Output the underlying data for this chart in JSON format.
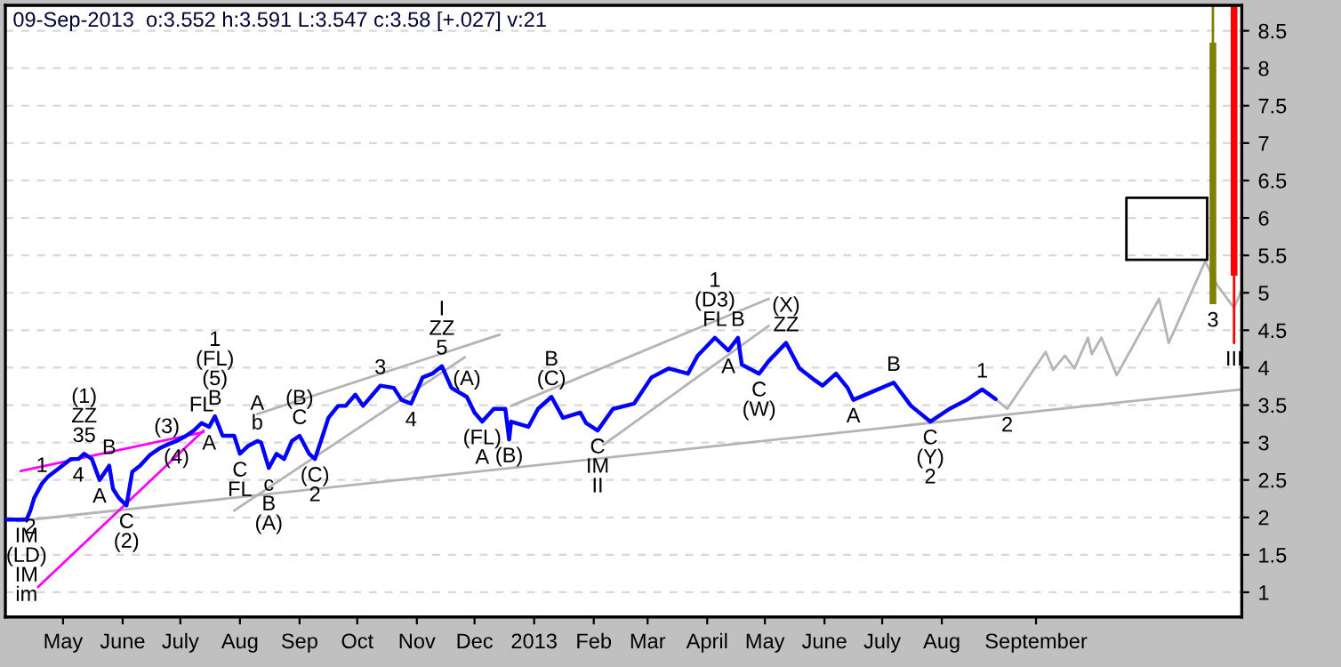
{
  "chart_data": {
    "type": "line",
    "title": "09-Sep-2013  o:3.552 h:3.591 L:3.547 c:3.58 [+.027] v:21",
    "xlim": [
      "2012-04-12",
      "2014-01-15"
    ],
    "ylim": [
      0.67,
      8.84
    ],
    "yticks": [
      1,
      1.5,
      2,
      2.5,
      3,
      3.5,
      4,
      4.5,
      5,
      5.5,
      6,
      6.5,
      7,
      7.5,
      8,
      8.5
    ],
    "xticks": [
      {
        "value": "2012-05-12",
        "label": "May"
      },
      {
        "value": "2012-06-12",
        "label": "June"
      },
      {
        "value": "2012-07-12",
        "label": "July"
      },
      {
        "value": "2012-08-12",
        "label": "Aug"
      },
      {
        "value": "2012-09-12",
        "label": "Sep"
      },
      {
        "value": "2012-10-12",
        "label": "Oct"
      },
      {
        "value": "2012-11-12",
        "label": "Nov"
      },
      {
        "value": "2012-12-12",
        "label": "Dec"
      },
      {
        "value": "2013-01-12",
        "label": "2013"
      },
      {
        "value": "2013-02-12",
        "label": "Feb"
      },
      {
        "value": "2013-03-12",
        "label": "Mar"
      },
      {
        "value": "2013-04-12",
        "label": "April"
      },
      {
        "value": "2013-05-12",
        "label": "May"
      },
      {
        "value": "2013-06-12",
        "label": "June"
      },
      {
        "value": "2013-07-12",
        "label": "July"
      },
      {
        "value": "2013-08-12",
        "label": "Aug"
      },
      {
        "value": "2013-09-30",
        "label": "September"
      }
    ],
    "grid": "y",
    "series": [
      {
        "color": "#b4b4b4",
        "x": [
          "2012-04-18",
          "2014-01-15"
        ],
        "values": [
          1.95,
          3.71
        ]
      },
      {
        "color": "#b4b4b4",
        "x": [
          "2012-08-09",
          "2012-12-07"
        ],
        "values": [
          2.09,
          4.14
        ]
      },
      {
        "color": "#b4b4b4",
        "x": [
          "2012-08-21",
          "2012-12-25"
        ],
        "values": [
          3.38,
          4.44
        ]
      },
      {
        "color": "#b4b4b4",
        "x": [
          "2012-12-31",
          "2013-05-14"
        ],
        "values": [
          3.49,
          4.92
        ]
      },
      {
        "color": "#b4b4b4",
        "x": [
          "2013-02-17",
          "2013-05-14"
        ],
        "values": [
          2.97,
          4.56
        ]
      },
      {
        "color": "#ff00ff",
        "x": [
          "2012-04-20",
          "2012-07-24"
        ],
        "values": [
          2.62,
          3.14
        ]
      },
      {
        "color": "#ff00ff",
        "x": [
          "2012-04-29",
          "2012-07-24"
        ],
        "values": [
          1.07,
          3.16
        ]
      },
      {
        "color": "#b4b4b4",
        "x": [
          "2013-09-09",
          "2013-09-15",
          "2013-10-05",
          "2013-10-09",
          "2013-10-15",
          "2013-10-20",
          "2013-10-27",
          "2013-10-29",
          "2013-11-03",
          "2013-11-11",
          "2013-12-03",
          "2013-12-08",
          "2013-12-27",
          "2014-01-02",
          "2014-01-11",
          "2014-01-15"
        ],
        "values": [
          3.58,
          3.45,
          4.21,
          3.97,
          4.16,
          3.99,
          4.4,
          4.18,
          4.4,
          3.9,
          4.92,
          4.33,
          5.42,
          5.11,
          4.8,
          5.04
        ]
      },
      {
        "color": "#000000",
        "x": [
          "2013-11-16",
          "2013-11-16",
          "2013-12-28"
        ],
        "values": [
          5.44,
          6.27,
          6.27
        ]
      },
      {
        "color": "#000000",
        "x": [
          "2013-11-16",
          "2013-12-28",
          "2013-12-28"
        ],
        "values": [
          5.44,
          5.44,
          6.27
        ]
      },
      {
        "color": "#808000",
        "x": [
          "2013-12-31",
          "2013-12-31"
        ],
        "values": [
          8.84,
          8.34
        ]
      },
      {
        "type": "bar",
        "color": "#808000",
        "x": [
          "2013-12-31"
        ],
        "base": [
          4.85
        ],
        "values": [
          3.49
        ]
      },
      {
        "type": "bar",
        "color": "#ff0000",
        "x": [
          "2014-01-11"
        ],
        "base": [
          5.23
        ],
        "values": [
          3.61
        ]
      },
      {
        "color": "#ff0000",
        "x": [
          "2014-01-11",
          "2014-01-11"
        ],
        "values": [
          4.33,
          5.22
        ]
      },
      {
        "color": "#0000ff",
        "x": [
          "2012-04-12",
          "2012-04-23",
          "2012-04-25",
          "2012-04-27",
          "2012-05-01",
          "2012-05-04",
          "2012-05-09",
          "2012-05-16",
          "2012-05-20",
          "2012-05-23",
          "2012-05-27",
          "2012-05-31",
          "2012-06-05",
          "2012-06-07",
          "2012-06-10",
          "2012-06-14",
          "2012-06-17",
          "2012-06-21",
          "2012-06-26",
          "2012-07-01",
          "2012-07-05",
          "2012-07-10",
          "2012-07-15",
          "2012-07-19",
          "2012-07-23",
          "2012-07-27",
          "2012-07-30",
          "2012-08-03",
          "2012-08-09",
          "2012-08-12",
          "2012-08-16",
          "2012-08-21",
          "2012-08-23",
          "2012-08-27",
          "2012-08-31",
          "2012-09-04",
          "2012-09-08",
          "2012-09-12",
          "2012-09-17",
          "2012-09-20",
          "2012-09-24",
          "2012-09-27",
          "2012-10-02",
          "2012-10-06",
          "2012-10-11",
          "2012-10-15",
          "2012-10-20",
          "2012-10-24",
          "2012-10-31",
          "2012-11-04",
          "2012-11-09",
          "2012-11-15",
          "2012-11-20",
          "2012-11-25",
          "2012-11-30",
          "2012-12-08",
          "2012-12-12",
          "2012-12-16",
          "2012-12-22",
          "2012-12-28",
          "2012-12-30",
          "2012-12-31",
          "2013-01-09",
          "2013-01-14",
          "2013-01-21",
          "2013-01-27",
          "2013-02-05",
          "2013-02-08",
          "2013-02-14",
          "2013-02-22",
          "2013-03-05",
          "2013-03-14",
          "2013-03-23",
          "2013-04-02",
          "2013-04-07",
          "2013-04-16",
          "2013-04-23",
          "2013-04-28",
          "2013-04-30",
          "2013-05-09",
          "2013-05-14",
          "2013-05-23",
          "2013-05-30",
          "2013-06-06",
          "2013-06-11",
          "2013-06-18",
          "2013-06-24",
          "2013-06-27",
          "2013-07-07",
          "2013-07-18",
          "2013-07-27",
          "2013-08-06",
          "2013-08-16",
          "2013-08-25",
          "2013-09-02",
          "2013-09-09"
        ],
        "values": [
          1.97,
          1.97,
          2.09,
          2.26,
          2.45,
          2.54,
          2.64,
          2.78,
          2.78,
          2.85,
          2.78,
          2.5,
          2.69,
          2.38,
          2.26,
          2.16,
          2.61,
          2.69,
          2.83,
          2.92,
          2.97,
          3.02,
          3.09,
          3.16,
          3.26,
          3.21,
          3.35,
          3.09,
          3.09,
          2.85,
          2.95,
          3.02,
          3.0,
          2.66,
          2.85,
          2.78,
          3.02,
          3.09,
          2.85,
          2.78,
          3.09,
          3.33,
          3.49,
          3.49,
          3.64,
          3.49,
          3.64,
          3.76,
          3.73,
          3.57,
          3.52,
          3.87,
          3.92,
          4.02,
          3.73,
          3.61,
          3.4,
          3.28,
          3.45,
          3.45,
          3.04,
          3.28,
          3.21,
          3.45,
          3.61,
          3.33,
          3.4,
          3.26,
          3.16,
          3.45,
          3.52,
          3.87,
          3.99,
          3.92,
          4.16,
          4.4,
          4.23,
          4.4,
          4.04,
          3.92,
          4.09,
          4.33,
          3.99,
          3.85,
          3.76,
          3.92,
          3.73,
          3.57,
          3.68,
          3.8,
          3.49,
          3.28,
          3.45,
          3.57,
          3.71,
          3.58
        ]
      }
    ],
    "annotations": [
      {
        "text": "IM\n(LD)\nIM\nim",
        "x": "2012-04-23",
        "y": 1.97
      },
      {
        "text": "2",
        "x": "2012-04-25",
        "y": 2.09
      },
      {
        "text": "1",
        "x": "2012-05-01",
        "y": 2.45
      },
      {
        "text": "(1)\nZZ\n35",
        "x": "2012-05-23",
        "y": 2.85
      },
      {
        "text": "4",
        "x": "2012-05-20",
        "y": 2.78
      },
      {
        "text": "A",
        "x": "2012-05-31",
        "y": 2.5
      },
      {
        "text": "B",
        "x": "2012-06-05",
        "y": 2.69
      },
      {
        "text": "C\n(2)",
        "x": "2012-06-14",
        "y": 2.16
      },
      {
        "text": "(3)",
        "x": "2012-07-05",
        "y": 2.97
      },
      {
        "text": "(4)",
        "x": "2012-07-10",
        "y": 3.02
      },
      {
        "text": "FL",
        "x": "2012-07-23",
        "y": 3.26
      },
      {
        "text": "A",
        "x": "2012-07-27",
        "y": 3.21
      },
      {
        "text": "1\n(FL)\n(5)\nB",
        "x": "2012-07-30",
        "y": 3.35
      },
      {
        "text": "C\nFL",
        "x": "2012-08-12",
        "y": 2.85
      },
      {
        "text": "A\nb",
        "x": "2012-08-21",
        "y": 3.02
      },
      {
        "text": "c\nB\n(A)",
        "x": "2012-08-27",
        "y": 2.66
      },
      {
        "text": "(B)\nC",
        "x": "2012-09-12",
        "y": 3.09
      },
      {
        "text": "(C)\n2",
        "x": "2012-09-20",
        "y": 2.78
      },
      {
        "text": "3",
        "x": "2012-10-24",
        "y": 3.76
      },
      {
        "text": "4",
        "x": "2012-11-09",
        "y": 3.52
      },
      {
        "text": "I\nZZ\n5",
        "x": "2012-11-25",
        "y": 4.02
      },
      {
        "text": "(A)",
        "x": "2012-12-08",
        "y": 3.61
      },
      {
        "text": "(FL)\nA",
        "x": "2012-12-16",
        "y": 3.28
      },
      {
        "text": "(B)",
        "x": "2012-12-30",
        "y": 3.04
      },
      {
        "text": "B\n(C)",
        "x": "2013-01-21",
        "y": 3.61
      },
      {
        "text": "C\nIM\nII",
        "x": "2013-02-14",
        "y": 3.16
      },
      {
        "text": "1\n(D3)\nFL",
        "x": "2013-04-16",
        "y": 4.4
      },
      {
        "text": "A",
        "x": "2013-04-23",
        "y": 4.23
      },
      {
        "text": "B",
        "x": "2013-04-28",
        "y": 4.4
      },
      {
        "text": "C\n(W)",
        "x": "2013-05-09",
        "y": 3.92
      },
      {
        "text": "(X)\nZZ",
        "x": "2013-05-23",
        "y": 4.33
      },
      {
        "text": "A",
        "x": "2013-06-27",
        "y": 3.57
      },
      {
        "text": "B",
        "x": "2013-07-18",
        "y": 3.8
      },
      {
        "text": "C\n(Y)\n2",
        "x": "2013-08-06",
        "y": 3.28
      },
      {
        "text": "1",
        "x": "2013-09-02",
        "y": 3.71
      },
      {
        "text": "2",
        "x": "2013-09-15",
        "y": 3.45
      },
      {
        "text": "3",
        "x": "2013-12-31",
        "y": 4.85
      },
      {
        "text": "III",
        "x": "2014-01-11",
        "y": 4.33
      }
    ]
  }
}
